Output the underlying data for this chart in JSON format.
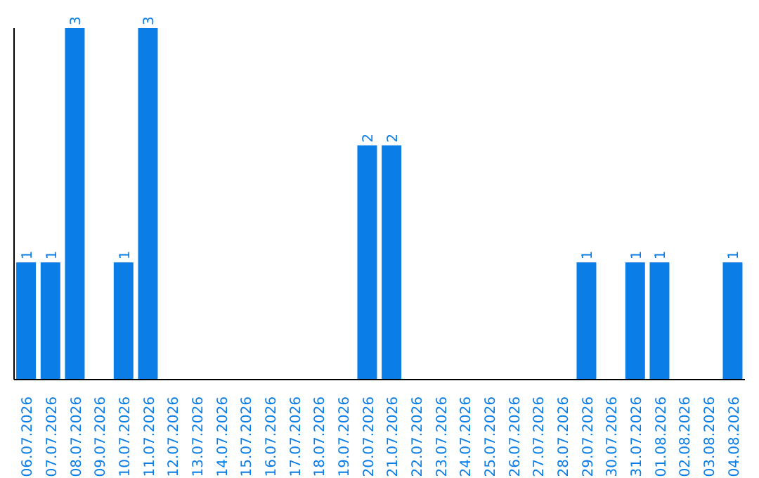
{
  "chart_data": {
    "type": "bar",
    "categories": [
      "06.07.2026",
      "07.07.2026",
      "08.07.2026",
      "09.07.2026",
      "10.07.2026",
      "11.07.2026",
      "12.07.2026",
      "13.07.2026",
      "14.07.2026",
      "15.07.2026",
      "16.07.2026",
      "17.07.2026",
      "18.07.2026",
      "19.07.2026",
      "20.07.2026",
      "21.07.2026",
      "22.07.2026",
      "23.07.2026",
      "24.07.2026",
      "25.07.2026",
      "26.07.2026",
      "27.07.2026",
      "28.07.2026",
      "29.07.2026",
      "30.07.2026",
      "31.07.2026",
      "01.08.2026",
      "02.08.2026",
      "03.08.2026",
      "04.08.2026"
    ],
    "values": [
      1,
      1,
      3,
      0,
      1,
      3,
      0,
      0,
      0,
      0,
      0,
      0,
      0,
      0,
      2,
      2,
      0,
      0,
      0,
      0,
      0,
      0,
      0,
      1,
      0,
      1,
      1,
      0,
      0,
      1
    ],
    "value_labels": [
      "1",
      "1",
      "3",
      null,
      "1",
      "3",
      null,
      null,
      null,
      null,
      null,
      null,
      null,
      null,
      "2",
      "2",
      null,
      null,
      null,
      null,
      null,
      null,
      null,
      "1",
      null,
      "1",
      "1",
      null,
      null,
      "1"
    ],
    "color": "#0a7de6"
  }
}
